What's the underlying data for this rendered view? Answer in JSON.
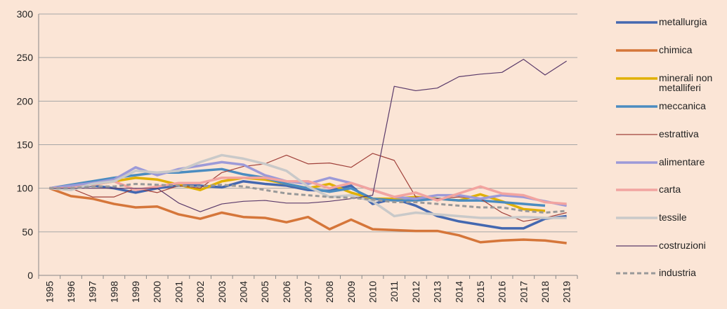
{
  "chart_data": {
    "type": "line",
    "categories": [
      "1995",
      "1996",
      "1997",
      "1998",
      "1999",
      "2000",
      "2001",
      "2002",
      "2003",
      "2004",
      "2005",
      "2006",
      "2007",
      "2008",
      "2009",
      "2010",
      "2011",
      "2012",
      "2013",
      "2014",
      "2015",
      "2016",
      "2017",
      "2018",
      "2019"
    ],
    "ylim": [
      0,
      300
    ],
    "yticks": [
      0,
      50,
      100,
      150,
      200,
      250,
      300
    ],
    "grid": true,
    "legend": "right",
    "series": [
      {
        "name": "metallurgia",
        "color": "#4468b0",
        "width": 3.5,
        "values": [
          100,
          100,
          103,
          100,
          95,
          100,
          103,
          103,
          101,
          108,
          105,
          103,
          98,
          97,
          103,
          82,
          88,
          80,
          68,
          62,
          58,
          54,
          54,
          65,
          68
        ]
      },
      {
        "name": "chimica",
        "color": "#d5763a",
        "width": 3.5,
        "values": [
          100,
          91,
          88,
          82,
          78,
          79,
          70,
          65,
          72,
          67,
          66,
          61,
          67,
          53,
          64,
          53,
          52,
          51,
          51,
          46,
          38,
          40,
          41,
          40,
          37
        ]
      },
      {
        "name": "minerali non metalliferi",
        "color": "#e0b000",
        "width": 3.5,
        "values": [
          100,
          100,
          104,
          108,
          112,
          110,
          104,
          98,
          108,
          112,
          110,
          105,
          100,
          105,
          95,
          88,
          88,
          90,
          88,
          86,
          93,
          85,
          76,
          74,
          null
        ]
      },
      {
        "name": "meccanica",
        "color": "#4b8cc0",
        "width": 3.5,
        "values": [
          100,
          104,
          108,
          112,
          115,
          118,
          118,
          120,
          122,
          116,
          112,
          105,
          100,
          96,
          100,
          88,
          86,
          86,
          88,
          86,
          86,
          84,
          82,
          80,
          null
        ]
      },
      {
        "name": "estrattiva",
        "color": "#a0403a",
        "width": 1.2,
        "values": [
          100,
          100,
          90,
          90,
          100,
          95,
          103,
          100,
          118,
          125,
          128,
          138,
          128,
          129,
          124,
          140,
          132,
          90,
          88,
          90,
          88,
          72,
          62,
          66,
          72
        ]
      },
      {
        "name": "alimentare",
        "color": "#9c9ad8",
        "width": 3.5,
        "values": [
          100,
          103,
          106,
          110,
          124,
          115,
          122,
          126,
          130,
          127,
          115,
          108,
          105,
          112,
          106,
          98,
          90,
          88,
          92,
          92,
          88,
          92,
          90,
          85,
          80
        ]
      },
      {
        "name": "carta",
        "color": "#f2a4a0",
        "width": 3.5,
        "values": [
          100,
          100,
          104,
          108,
          98,
          102,
          106,
          106,
          112,
          112,
          112,
          108,
          108,
          100,
          106,
          98,
          90,
          95,
          86,
          94,
          102,
          94,
          92,
          84,
          82
        ]
      },
      {
        "name": "tessile",
        "color": "#c9c9c9",
        "width": 3.5,
        "values": [
          100,
          98,
          105,
          108,
          120,
          118,
          120,
          130,
          138,
          134,
          128,
          120,
          102,
          90,
          92,
          85,
          68,
          72,
          70,
          68,
          66,
          66,
          67,
          66,
          66
        ]
      },
      {
        "name": "costruzioni",
        "color": "#5a3a6a",
        "width": 1.2,
        "values": [
          100,
          100,
          100,
          100,
          100,
          100,
          83,
          73,
          82,
          85,
          86,
          83,
          83,
          85,
          88,
          92,
          217,
          212,
          215,
          228,
          231,
          233,
          248,
          230,
          246
        ]
      },
      {
        "name": "industria",
        "color": "#999999",
        "width": 3,
        "dashed": true,
        "values": [
          100,
          100,
          102,
          102,
          105,
          104,
          103,
          102,
          104,
          102,
          98,
          94,
          92,
          90,
          89,
          87,
          84,
          84,
          82,
          80,
          78,
          78,
          74,
          72,
          74
        ]
      }
    ]
  }
}
